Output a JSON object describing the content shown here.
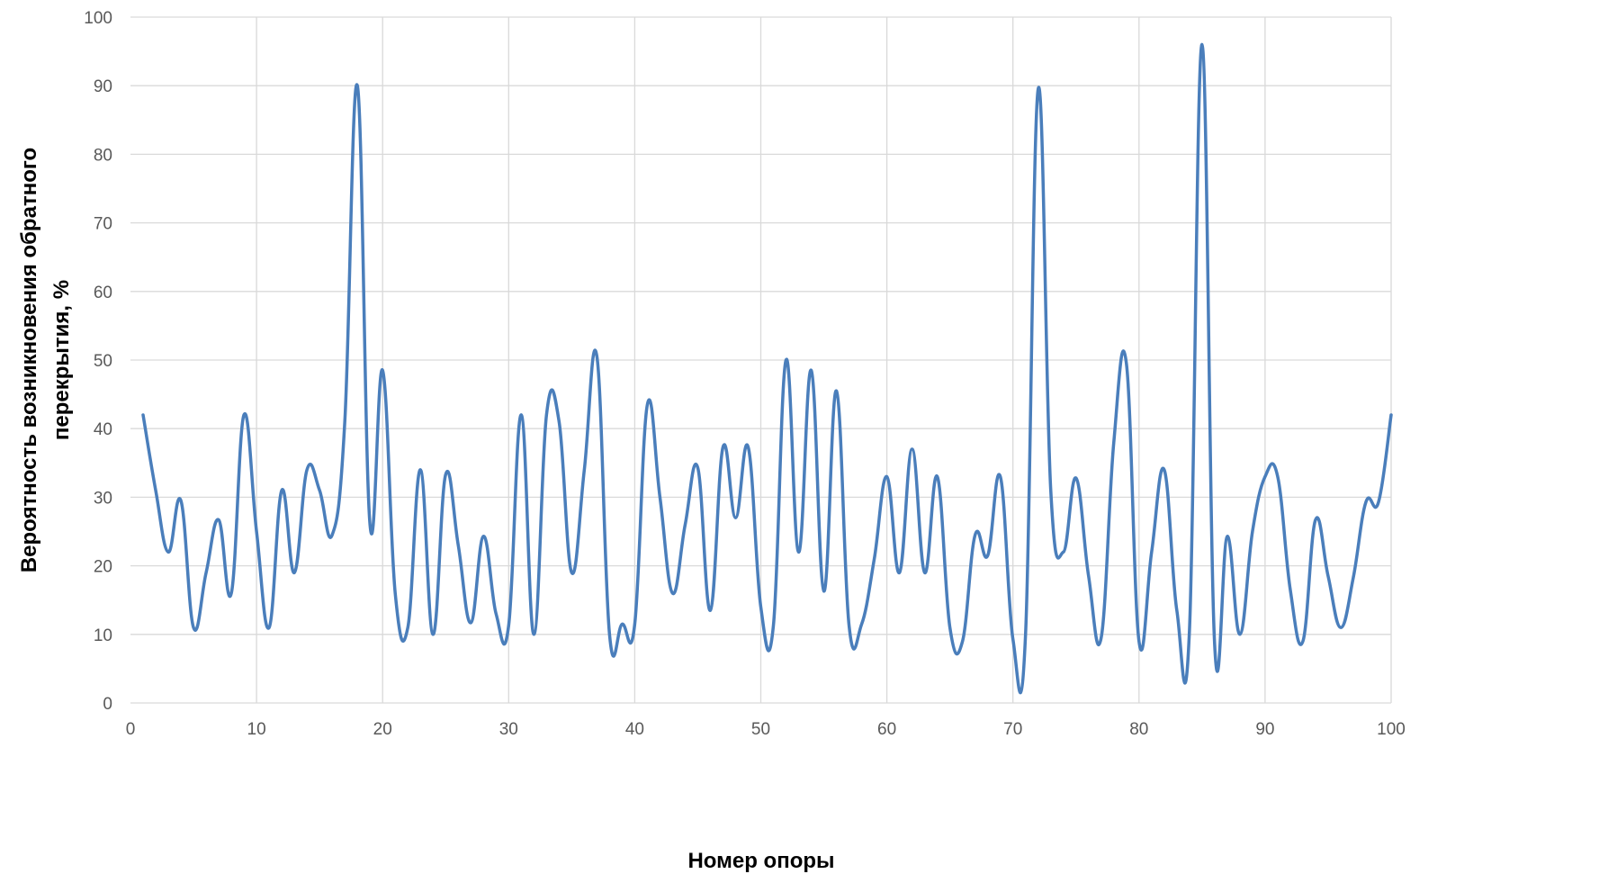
{
  "chart_data": {
    "type": "line",
    "smooth": true,
    "xlabel": "Номер опоры",
    "ylabel_lines": [
      "Вероятность возникновения обратного",
      "перекрытия, %"
    ],
    "xlim": [
      0,
      100
    ],
    "ylim": [
      0,
      100
    ],
    "xticks": [
      0,
      10,
      20,
      30,
      40,
      50,
      60,
      70,
      80,
      90,
      100
    ],
    "yticks": [
      0,
      10,
      20,
      30,
      40,
      50,
      60,
      70,
      80,
      90,
      100
    ],
    "grid": true,
    "legend": "none",
    "color": "#4a7ebb",
    "series": [
      {
        "x": [
          1,
          2,
          3,
          4,
          5,
          6,
          7,
          8,
          9,
          10,
          11,
          12,
          13,
          14,
          15,
          16,
          17,
          18,
          19,
          20,
          21,
          22,
          23,
          24,
          25,
          26,
          27,
          28,
          29,
          30,
          31,
          32,
          33,
          34,
          35,
          36,
          37,
          38,
          39,
          40,
          41,
          42,
          43,
          44,
          45,
          46,
          47,
          48,
          49,
          50,
          51,
          52,
          53,
          54,
          55,
          56,
          57,
          58,
          59,
          60,
          61,
          62,
          63,
          64,
          65,
          66,
          67,
          68,
          69,
          70,
          71,
          72,
          73,
          74,
          75,
          76,
          77,
          78,
          79,
          80,
          81,
          82,
          83,
          84,
          85,
          86,
          87,
          88,
          89,
          90,
          91,
          92,
          93,
          94,
          95,
          96,
          97,
          98,
          99,
          100
        ],
        "values": [
          42,
          31,
          22,
          29.5,
          11,
          19,
          26.7,
          16,
          42,
          25,
          11,
          31,
          19,
          34,
          31,
          24.5,
          41,
          90,
          26,
          48.5,
          16,
          11,
          34,
          10,
          33.3,
          23,
          11.7,
          24.3,
          13,
          11.3,
          42,
          10,
          42,
          41,
          19,
          34,
          50.5,
          10,
          11.5,
          11.5,
          43.5,
          30,
          16,
          26,
          34.3,
          13.5,
          37.3,
          27,
          37.3,
          14,
          11.3,
          50,
          22,
          48.5,
          16.3,
          45.5,
          11.3,
          11.5,
          21,
          33,
          19,
          37,
          19,
          33,
          11,
          9,
          24.5,
          21.5,
          33,
          9.3,
          10,
          89.5,
          31,
          22,
          32.8,
          18.5,
          9.5,
          38,
          49.5,
          9,
          22,
          34,
          13.5,
          10.5,
          96,
          8.5,
          24.3,
          10,
          25,
          33,
          33,
          16.5,
          9,
          26.7,
          18.5,
          11,
          18.3,
          29.3,
          29.3,
          42
        ]
      }
    ]
  }
}
